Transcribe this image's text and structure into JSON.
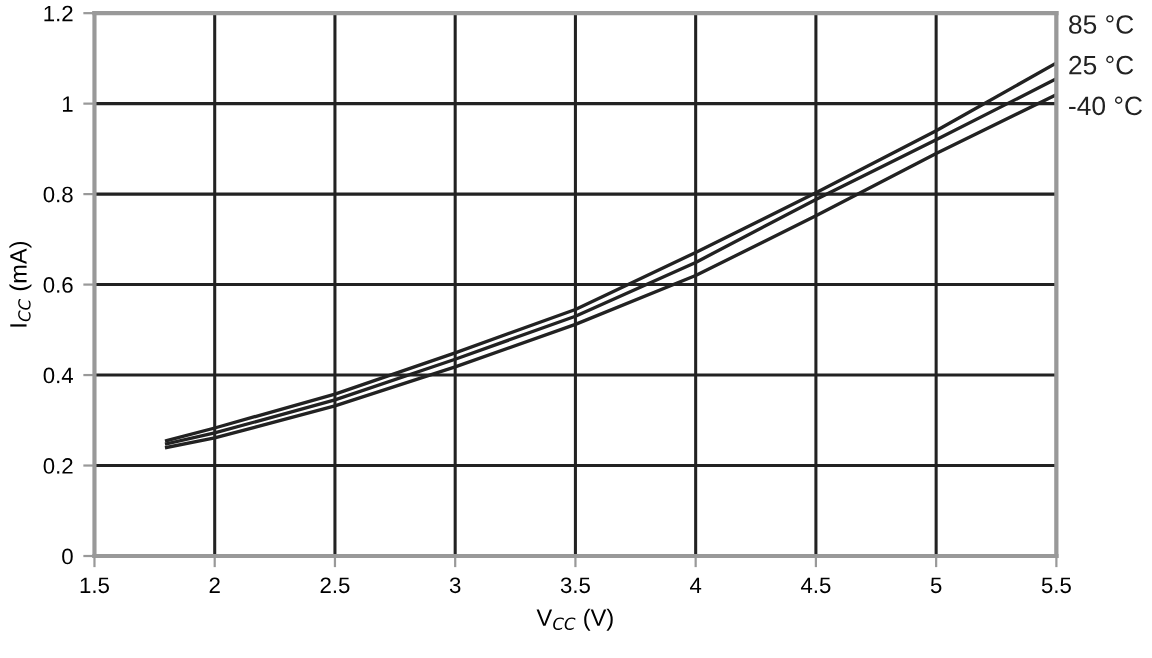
{
  "chart_data": {
    "type": "line",
    "xlabel": "V$_{CC}$ (V)",
    "ylabel": "I$_{CC}$ (mA)",
    "x": [
      1.8,
      2,
      2.5,
      3,
      3.5,
      4,
      4.5,
      5,
      5.5
    ],
    "series": [
      {
        "name": "85 °C",
        "color": "#222222",
        "values": [
          0.255,
          0.283,
          0.358,
          0.449,
          0.545,
          0.671,
          0.803,
          0.94,
          1.09
        ]
      },
      {
        "name": "25 °C",
        "color": "#222222",
        "values": [
          0.248,
          0.272,
          0.345,
          0.435,
          0.53,
          0.649,
          0.788,
          0.92,
          1.055
        ]
      },
      {
        "name": "-40 °C",
        "color": "#222222",
        "values": [
          0.24,
          0.261,
          0.332,
          0.418,
          0.512,
          0.62,
          0.752,
          0.89,
          1.02
        ]
      }
    ],
    "xlim": [
      1.5,
      5.5
    ],
    "ylim": [
      0,
      1.2
    ],
    "xticks": [
      1.5,
      2,
      2.5,
      3,
      3.5,
      4,
      4.5,
      5,
      5.5
    ],
    "yticks": [
      0,
      0.2,
      0.4,
      0.6,
      0.8,
      1,
      1.2
    ],
    "grid": true,
    "legend": "right",
    "marker": "none",
    "line_style": "solid"
  }
}
